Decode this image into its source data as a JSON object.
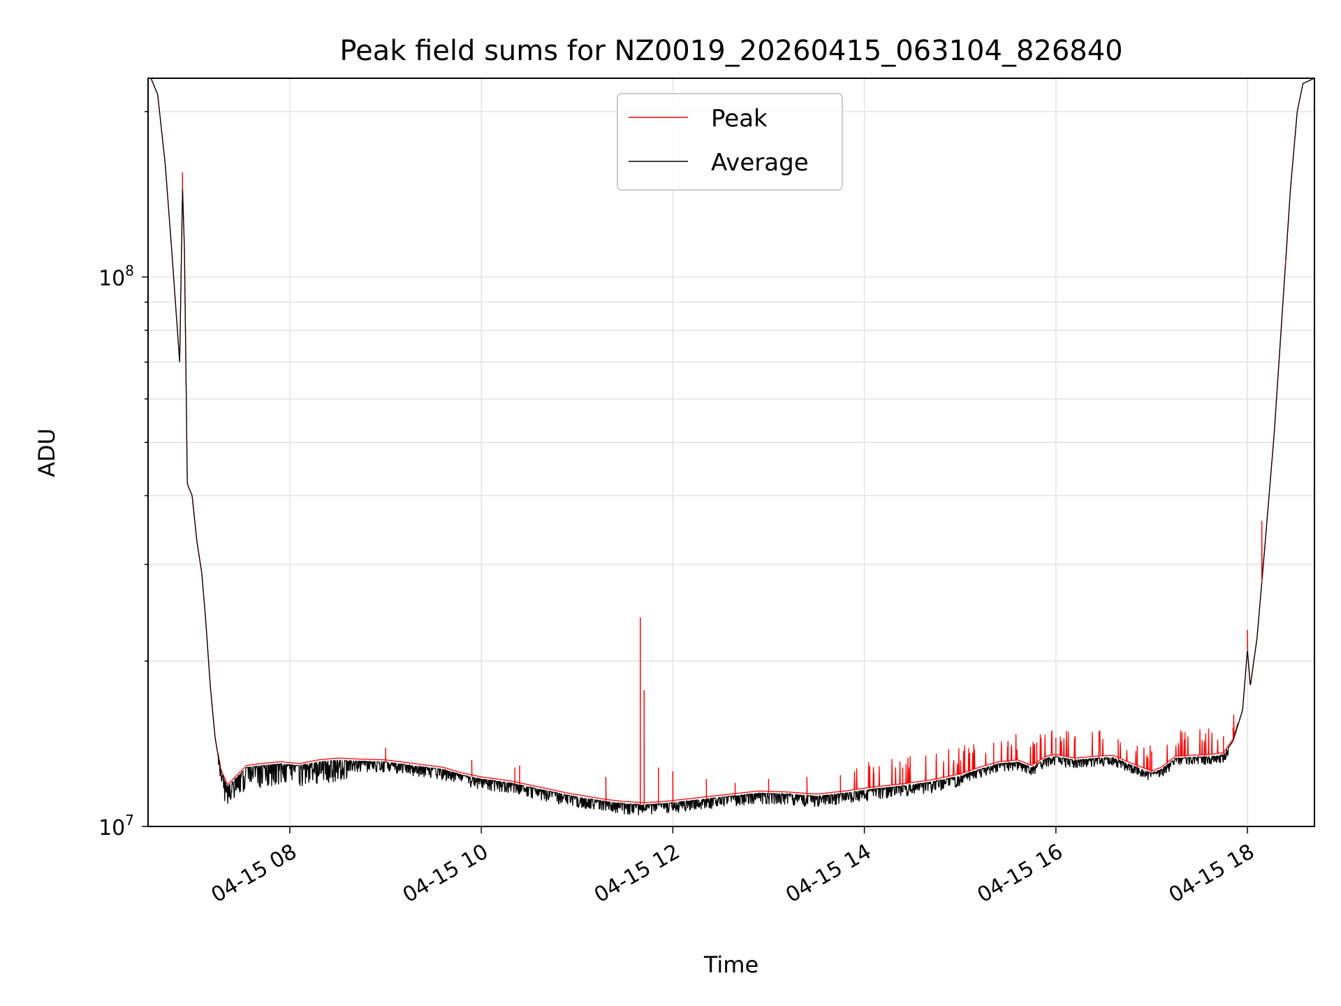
{
  "chart_data": {
    "type": "line",
    "title": "Peak field sums for NZ0019_20260415_063104_826840",
    "xlabel": "Time",
    "ylabel": "ADU",
    "yscale": "log",
    "xlim": [
      6.52,
      18.7
    ],
    "ylim": [
      10000000,
      230000000
    ],
    "x_unit": "hours since 2026-04-15 00:00",
    "grid": true,
    "legend": {
      "position": "top-center",
      "entries": [
        "Peak",
        "Average"
      ]
    },
    "x_ticks": [
      {
        "value": 8,
        "label": "04-15 08"
      },
      {
        "value": 10,
        "label": "04-15 10"
      },
      {
        "value": 12,
        "label": "04-15 12"
      },
      {
        "value": 14,
        "label": "04-15 14"
      },
      {
        "value": 16,
        "label": "04-15 16"
      },
      {
        "value": 18,
        "label": "04-15 18"
      }
    ],
    "y_ticks": [
      {
        "value": 10000000,
        "base": "10",
        "exp": "7"
      },
      {
        "value": 100000000,
        "base": "10",
        "exp": "8"
      }
    ],
    "series": [
      {
        "name": "Average",
        "color": "#000000",
        "points": [
          [
            6.55,
            230000000
          ],
          [
            6.62,
            215000000
          ],
          [
            6.7,
            160000000
          ],
          [
            6.77,
            110000000
          ],
          [
            6.85,
            70000000
          ],
          [
            6.88,
            145000000
          ],
          [
            6.9,
            112000000
          ],
          [
            6.93,
            42000000
          ],
          [
            6.98,
            40000000
          ],
          [
            7.03,
            33000000
          ],
          [
            7.08,
            29000000
          ],
          [
            7.12,
            24000000
          ],
          [
            7.17,
            18000000
          ],
          [
            7.22,
            14500000
          ],
          [
            7.28,
            12600000
          ],
          [
            7.35,
            11800000
          ],
          [
            7.45,
            12300000
          ],
          [
            7.55,
            12800000
          ],
          [
            7.7,
            12900000
          ],
          [
            7.9,
            13000000
          ],
          [
            8.1,
            12900000
          ],
          [
            8.3,
            13100000
          ],
          [
            8.5,
            13200000
          ],
          [
            8.7,
            13150000
          ],
          [
            9.0,
            13100000
          ],
          [
            9.3,
            12900000
          ],
          [
            9.6,
            12700000
          ],
          [
            9.8,
            12400000
          ],
          [
            10.0,
            12200000
          ],
          [
            10.3,
            12000000
          ],
          [
            10.6,
            11700000
          ],
          [
            10.9,
            11400000
          ],
          [
            11.1,
            11250000
          ],
          [
            11.3,
            11100000
          ],
          [
            11.5,
            11000000
          ],
          [
            11.7,
            10950000
          ],
          [
            11.9,
            11000000
          ],
          [
            12.1,
            11100000
          ],
          [
            12.3,
            11200000
          ],
          [
            12.6,
            11350000
          ],
          [
            12.9,
            11500000
          ],
          [
            13.2,
            11450000
          ],
          [
            13.5,
            11350000
          ],
          [
            13.8,
            11500000
          ],
          [
            14.1,
            11700000
          ],
          [
            14.4,
            11850000
          ],
          [
            14.7,
            12050000
          ],
          [
            15.0,
            12350000
          ],
          [
            15.2,
            12700000
          ],
          [
            15.4,
            13000000
          ],
          [
            15.6,
            13100000
          ],
          [
            15.75,
            12800000
          ],
          [
            15.9,
            13300000
          ],
          [
            16.0,
            13400000
          ],
          [
            16.2,
            13200000
          ],
          [
            16.4,
            13300000
          ],
          [
            16.6,
            13350000
          ],
          [
            16.75,
            13000000
          ],
          [
            16.9,
            12700000
          ],
          [
            17.0,
            12500000
          ],
          [
            17.1,
            12700000
          ],
          [
            17.25,
            13300000
          ],
          [
            17.4,
            13350000
          ],
          [
            17.6,
            13400000
          ],
          [
            17.75,
            13500000
          ],
          [
            17.85,
            14300000
          ],
          [
            17.95,
            16300000
          ],
          [
            18.0,
            21000000
          ],
          [
            18.03,
            18000000
          ],
          [
            18.1,
            22000000
          ],
          [
            18.18,
            32000000
          ],
          [
            18.28,
            52000000
          ],
          [
            18.38,
            95000000
          ],
          [
            18.45,
            145000000
          ],
          [
            18.52,
            200000000
          ],
          [
            18.58,
            225000000
          ],
          [
            18.7,
            230000000
          ]
        ]
      },
      {
        "name": "Peak",
        "color": "#ff0000",
        "envelope_offset": 0.03,
        "spikes": [
          [
            6.88,
            155000000
          ],
          [
            9.0,
            13900000
          ],
          [
            9.9,
            13200000
          ],
          [
            10.35,
            12800000
          ],
          [
            10.4,
            12900000
          ],
          [
            11.3,
            12300000
          ],
          [
            11.66,
            24000000
          ],
          [
            11.7,
            17700000
          ],
          [
            11.85,
            12800000
          ],
          [
            12.0,
            12600000
          ],
          [
            12.35,
            12200000
          ],
          [
            12.65,
            12000000
          ],
          [
            13.0,
            12200000
          ],
          [
            13.4,
            12300000
          ],
          [
            13.75,
            12400000
          ],
          [
            14.1,
            12500000
          ],
          [
            14.4,
            12800000
          ],
          [
            14.75,
            13200000
          ],
          [
            15.1,
            13600000
          ],
          [
            15.35,
            14200000
          ],
          [
            15.5,
            14300000
          ],
          [
            15.8,
            14200000
          ],
          [
            16.0,
            14500000
          ],
          [
            16.2,
            14600000
          ],
          [
            16.45,
            14600000
          ],
          [
            16.65,
            14400000
          ],
          [
            16.85,
            14000000
          ],
          [
            17.0,
            13700000
          ],
          [
            17.35,
            14200000
          ],
          [
            17.55,
            14300000
          ],
          [
            17.75,
            14600000
          ],
          [
            17.85,
            15100000
          ],
          [
            18.0,
            22800000
          ],
          [
            18.15,
            36000000
          ],
          [
            18.4,
            105000000
          ]
        ]
      }
    ]
  }
}
